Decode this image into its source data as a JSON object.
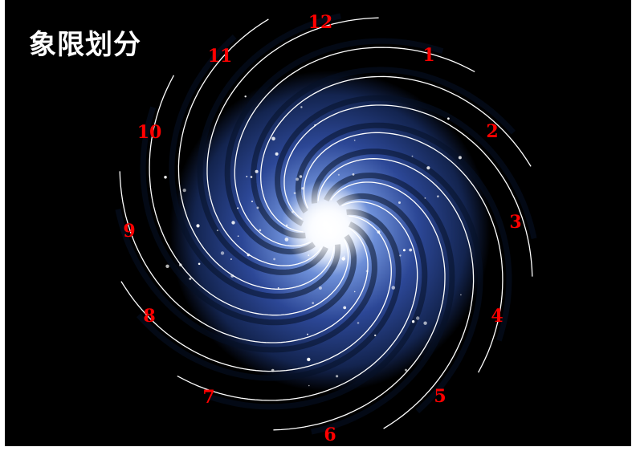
{
  "title": "象限划分",
  "colors": {
    "background": "#000000",
    "title": "#ffffff",
    "label": "#ff0000",
    "arm": "#ffffff",
    "galaxy_core": "#ffffff",
    "galaxy_mid": "#3b5bb0",
    "galaxy_outer": "#0d1a3a"
  },
  "labels": [
    "12",
    "1",
    "2",
    "3",
    "4",
    "5",
    "6",
    "7",
    "8",
    "9",
    "10",
    "11"
  ]
}
